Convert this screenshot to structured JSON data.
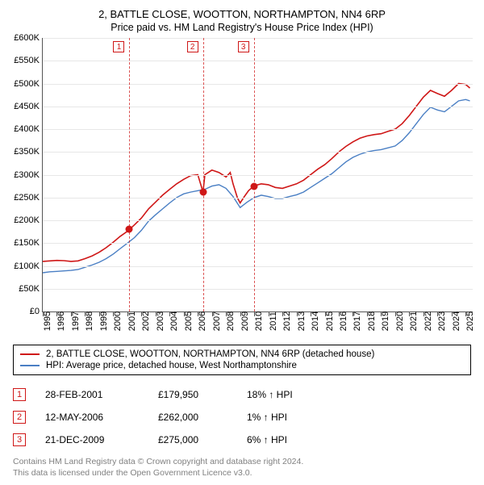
{
  "title_main": "2, BATTLE CLOSE, WOOTTON, NORTHAMPTON, NN4 6RP",
  "title_sub": "Price paid vs. HM Land Registry's House Price Index (HPI)",
  "chart": {
    "type": "line",
    "background_color": "#ffffff",
    "grid_color": "#e7e7e7",
    "axis_color": "#555555",
    "y": {
      "min": 0,
      "max": 600000,
      "step": 50000,
      "prefix": "£",
      "suffix": "K",
      "divide": 1000
    },
    "x": {
      "min": 1995,
      "max": 2025.5,
      "ticks": [
        1995,
        1996,
        1997,
        1998,
        1999,
        2000,
        2001,
        2002,
        2003,
        2004,
        2005,
        2006,
        2007,
        2008,
        2009,
        2010,
        2011,
        2012,
        2013,
        2014,
        2015,
        2016,
        2017,
        2018,
        2019,
        2020,
        2021,
        2022,
        2023,
        2024,
        2025
      ]
    },
    "title_fontsize": 13,
    "axis_fontsize": 11,
    "series": [
      {
        "id": "price_paid",
        "color": "#cf1717",
        "line_width": 1.6,
        "points": [
          [
            1995.0,
            110000
          ],
          [
            1995.5,
            111000
          ],
          [
            1996.0,
            112000
          ],
          [
            1996.5,
            111500
          ],
          [
            1997.0,
            110000
          ],
          [
            1997.5,
            111000
          ],
          [
            1998.0,
            116000
          ],
          [
            1998.5,
            122000
          ],
          [
            1999.0,
            130000
          ],
          [
            1999.5,
            140000
          ],
          [
            2000.0,
            152000
          ],
          [
            2000.5,
            165000
          ],
          [
            2001.0,
            176000
          ],
          [
            2001.15,
            179950
          ],
          [
            2001.5,
            190000
          ],
          [
            2002.0,
            205000
          ],
          [
            2002.5,
            225000
          ],
          [
            2003.0,
            240000
          ],
          [
            2003.5,
            255000
          ],
          [
            2004.0,
            268000
          ],
          [
            2004.5,
            280000
          ],
          [
            2005.0,
            290000
          ],
          [
            2005.5,
            298000
          ],
          [
            2006.0,
            300000
          ],
          [
            2006.37,
            262000
          ],
          [
            2006.5,
            300000
          ],
          [
            2007.0,
            310000
          ],
          [
            2007.5,
            305000
          ],
          [
            2008.0,
            295000
          ],
          [
            2008.3,
            305000
          ],
          [
            2008.5,
            280000
          ],
          [
            2008.8,
            250000
          ],
          [
            2009.0,
            238000
          ],
          [
            2009.3,
            252000
          ],
          [
            2009.6,
            265000
          ],
          [
            2009.97,
            275000
          ],
          [
            2010.0,
            276000
          ],
          [
            2010.5,
            280000
          ],
          [
            2011.0,
            278000
          ],
          [
            2011.5,
            272000
          ],
          [
            2012.0,
            270000
          ],
          [
            2012.5,
            275000
          ],
          [
            2013.0,
            280000
          ],
          [
            2013.5,
            288000
          ],
          [
            2014.0,
            300000
          ],
          [
            2014.5,
            312000
          ],
          [
            2015.0,
            322000
          ],
          [
            2015.5,
            335000
          ],
          [
            2016.0,
            350000
          ],
          [
            2016.5,
            362000
          ],
          [
            2017.0,
            372000
          ],
          [
            2017.5,
            380000
          ],
          [
            2018.0,
            385000
          ],
          [
            2018.5,
            388000
          ],
          [
            2019.0,
            390000
          ],
          [
            2019.5,
            395000
          ],
          [
            2020.0,
            400000
          ],
          [
            2020.5,
            412000
          ],
          [
            2021.0,
            430000
          ],
          [
            2021.5,
            450000
          ],
          [
            2022.0,
            470000
          ],
          [
            2022.5,
            485000
          ],
          [
            2023.0,
            478000
          ],
          [
            2023.5,
            472000
          ],
          [
            2024.0,
            485000
          ],
          [
            2024.5,
            500000
          ],
          [
            2025.0,
            498000
          ],
          [
            2025.3,
            490000
          ]
        ]
      },
      {
        "id": "hpi",
        "color": "#4a7fc4",
        "line_width": 1.4,
        "points": [
          [
            1995.0,
            85000
          ],
          [
            1995.5,
            87000
          ],
          [
            1996.0,
            88000
          ],
          [
            1996.5,
            89000
          ],
          [
            1997.0,
            90000
          ],
          [
            1997.5,
            92000
          ],
          [
            1998.0,
            97000
          ],
          [
            1998.5,
            102000
          ],
          [
            1999.0,
            108000
          ],
          [
            1999.5,
            116000
          ],
          [
            2000.0,
            126000
          ],
          [
            2000.5,
            138000
          ],
          [
            2001.0,
            150000
          ],
          [
            2001.5,
            162000
          ],
          [
            2002.0,
            178000
          ],
          [
            2002.5,
            198000
          ],
          [
            2003.0,
            212000
          ],
          [
            2003.5,
            225000
          ],
          [
            2004.0,
            238000
          ],
          [
            2004.5,
            250000
          ],
          [
            2005.0,
            258000
          ],
          [
            2005.5,
            262000
          ],
          [
            2006.0,
            265000
          ],
          [
            2006.5,
            268000
          ],
          [
            2007.0,
            275000
          ],
          [
            2007.5,
            278000
          ],
          [
            2008.0,
            270000
          ],
          [
            2008.5,
            252000
          ],
          [
            2009.0,
            228000
          ],
          [
            2009.5,
            240000
          ],
          [
            2010.0,
            250000
          ],
          [
            2010.5,
            255000
          ],
          [
            2011.0,
            252000
          ],
          [
            2011.5,
            248000
          ],
          [
            2012.0,
            248000
          ],
          [
            2012.5,
            252000
          ],
          [
            2013.0,
            256000
          ],
          [
            2013.5,
            262000
          ],
          [
            2014.0,
            272000
          ],
          [
            2014.5,
            282000
          ],
          [
            2015.0,
            292000
          ],
          [
            2015.5,
            302000
          ],
          [
            2016.0,
            315000
          ],
          [
            2016.5,
            328000
          ],
          [
            2017.0,
            338000
          ],
          [
            2017.5,
            345000
          ],
          [
            2018.0,
            350000
          ],
          [
            2018.5,
            353000
          ],
          [
            2019.0,
            355000
          ],
          [
            2019.5,
            359000
          ],
          [
            2020.0,
            363000
          ],
          [
            2020.5,
            375000
          ],
          [
            2021.0,
            392000
          ],
          [
            2021.5,
            412000
          ],
          [
            2022.0,
            432000
          ],
          [
            2022.5,
            448000
          ],
          [
            2023.0,
            442000
          ],
          [
            2023.5,
            438000
          ],
          [
            2024.0,
            450000
          ],
          [
            2024.5,
            462000
          ],
          [
            2025.0,
            465000
          ],
          [
            2025.3,
            462000
          ]
        ]
      }
    ],
    "markers": [
      {
        "x": 2001.15,
        "y": 179950,
        "fill": "#cf1717",
        "label": "1"
      },
      {
        "x": 2006.37,
        "y": 262000,
        "fill": "#cf1717",
        "label": "2"
      },
      {
        "x": 2009.97,
        "y": 275000,
        "fill": "#cf1717",
        "label": "3"
      }
    ],
    "vline_color": "#cf1717"
  },
  "legend": {
    "items": [
      {
        "color": "#cf1717",
        "text": "2, BATTLE CLOSE, WOOTTON, NORTHAMPTON, NN4 6RP (detached house)"
      },
      {
        "color": "#4a7fc4",
        "text": "HPI: Average price, detached house, West Northamptonshire"
      }
    ]
  },
  "events": [
    {
      "n": "1",
      "color": "#cf1717",
      "date": "28-FEB-2001",
      "price": "£179,950",
      "pct": "18% ↑ HPI"
    },
    {
      "n": "2",
      "color": "#cf1717",
      "date": "12-MAY-2006",
      "price": "£262,000",
      "pct": "1% ↑ HPI"
    },
    {
      "n": "3",
      "color": "#cf1717",
      "date": "21-DEC-2009",
      "price": "£275,000",
      "pct": "6% ↑ HPI"
    }
  ],
  "footnote_line1": "Contains HM Land Registry data © Crown copyright and database right 2024.",
  "footnote_line2": "This data is licensed under the Open Government Licence v3.0."
}
